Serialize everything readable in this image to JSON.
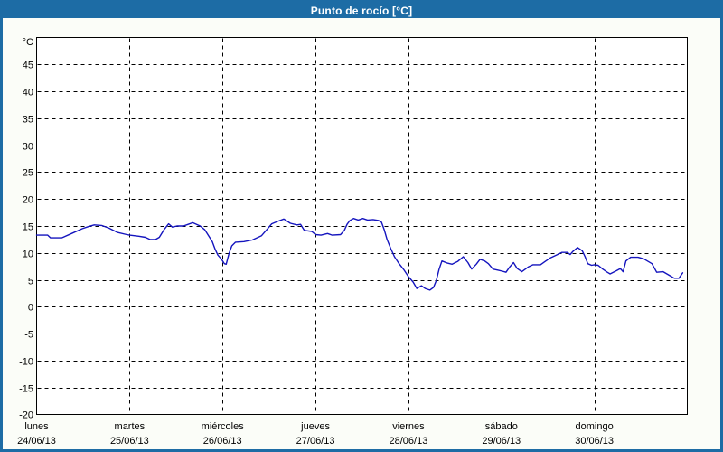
{
  "header": {
    "title": "Punto de rocío [°C]",
    "bg_color": "#1d6ca5",
    "text_color": "#ffffff"
  },
  "panel": {
    "background_color": "#fbfdf8",
    "border_color": "#1d6ca5",
    "plot_background_color": "#ffffff",
    "axis_color": "#000000"
  },
  "chart_data": {
    "type": "line",
    "title": "Punto de rocío [°C]",
    "y_unit_label": "°C",
    "ylabel": "",
    "xlabel": "",
    "ylim": [
      -20,
      50
    ],
    "xlim_days": [
      0,
      7
    ],
    "grid": "dashed",
    "legend": "none",
    "y_ticks": [
      45,
      40,
      35,
      30,
      25,
      20,
      15,
      10,
      5,
      0,
      -5,
      -10,
      -15
    ],
    "y_axis_bottom_label": "-20",
    "x_days": [
      {
        "name": "lunes",
        "date": "24/06/13"
      },
      {
        "name": "martes",
        "date": "25/06/13"
      },
      {
        "name": "miércoles",
        "date": "26/06/13"
      },
      {
        "name": "jueves",
        "date": "27/06/13"
      },
      {
        "name": "viernes",
        "date": "28/06/13"
      },
      {
        "name": "sábado",
        "date": "29/06/13"
      },
      {
        "name": "domingo",
        "date": "30/06/13"
      }
    ],
    "line_color": "#1414be",
    "series": [
      {
        "name": "Punto de rocío",
        "points": [
          [
            0.0,
            13.3
          ],
          [
            0.12,
            13.3
          ],
          [
            0.15,
            12.8
          ],
          [
            0.27,
            12.8
          ],
          [
            0.39,
            13.7
          ],
          [
            0.49,
            14.5
          ],
          [
            0.56,
            14.9
          ],
          [
            0.62,
            15.2
          ],
          [
            0.7,
            15.1
          ],
          [
            0.78,
            14.6
          ],
          [
            0.87,
            13.8
          ],
          [
            0.97,
            13.4
          ],
          [
            1.0,
            13.3
          ],
          [
            1.1,
            13.1
          ],
          [
            1.17,
            12.9
          ],
          [
            1.22,
            12.5
          ],
          [
            1.28,
            12.5
          ],
          [
            1.32,
            12.9
          ],
          [
            1.37,
            14.3
          ],
          [
            1.42,
            15.4
          ],
          [
            1.46,
            14.8
          ],
          [
            1.51,
            15.0
          ],
          [
            1.58,
            15.0
          ],
          [
            1.63,
            15.3
          ],
          [
            1.68,
            15.6
          ],
          [
            1.76,
            15.0
          ],
          [
            1.81,
            14.3
          ],
          [
            1.85,
            13.2
          ],
          [
            1.89,
            12.1
          ],
          [
            1.92,
            10.7
          ],
          [
            1.95,
            9.6
          ],
          [
            1.99,
            8.8
          ],
          [
            2.02,
            8.0
          ],
          [
            2.04,
            7.9
          ],
          [
            2.07,
            9.9
          ],
          [
            2.1,
            11.3
          ],
          [
            2.14,
            12.0
          ],
          [
            2.23,
            12.1
          ],
          [
            2.32,
            12.4
          ],
          [
            2.42,
            13.2
          ],
          [
            2.49,
            14.6
          ],
          [
            2.53,
            15.4
          ],
          [
            2.6,
            15.9
          ],
          [
            2.66,
            16.3
          ],
          [
            2.73,
            15.5
          ],
          [
            2.8,
            15.2
          ],
          [
            2.84,
            15.3
          ],
          [
            2.88,
            14.2
          ],
          [
            2.96,
            14.0
          ],
          [
            3.0,
            13.4
          ],
          [
            3.06,
            13.3
          ],
          [
            3.13,
            13.6
          ],
          [
            3.18,
            13.3
          ],
          [
            3.27,
            13.4
          ],
          [
            3.31,
            14.2
          ],
          [
            3.34,
            15.3
          ],
          [
            3.37,
            16.0
          ],
          [
            3.41,
            16.4
          ],
          [
            3.46,
            16.1
          ],
          [
            3.51,
            16.4
          ],
          [
            3.56,
            16.1
          ],
          [
            3.62,
            16.2
          ],
          [
            3.68,
            16.0
          ],
          [
            3.71,
            15.7
          ],
          [
            3.74,
            14.3
          ],
          [
            3.77,
            12.5
          ],
          [
            3.81,
            10.8
          ],
          [
            3.85,
            9.3
          ],
          [
            3.9,
            8.0
          ],
          [
            3.95,
            6.9
          ],
          [
            4.0,
            5.6
          ],
          [
            4.05,
            4.6
          ],
          [
            4.09,
            3.4
          ],
          [
            4.14,
            3.9
          ],
          [
            4.18,
            3.4
          ],
          [
            4.23,
            3.1
          ],
          [
            4.27,
            3.6
          ],
          [
            4.3,
            4.9
          ],
          [
            4.33,
            7.0
          ],
          [
            4.36,
            8.5
          ],
          [
            4.42,
            8.1
          ],
          [
            4.47,
            7.9
          ],
          [
            4.53,
            8.4
          ],
          [
            4.59,
            9.3
          ],
          [
            4.64,
            8.2
          ],
          [
            4.68,
            7.0
          ],
          [
            4.73,
            7.9
          ],
          [
            4.77,
            8.8
          ],
          [
            4.82,
            8.5
          ],
          [
            4.86,
            8.0
          ],
          [
            4.91,
            7.0
          ],
          [
            4.96,
            6.8
          ],
          [
            5.01,
            6.6
          ],
          [
            5.05,
            6.4
          ],
          [
            5.09,
            7.4
          ],
          [
            5.13,
            8.2
          ],
          [
            5.17,
            7.1
          ],
          [
            5.22,
            6.5
          ],
          [
            5.29,
            7.4
          ],
          [
            5.34,
            7.8
          ],
          [
            5.42,
            7.8
          ],
          [
            5.47,
            8.4
          ],
          [
            5.53,
            9.1
          ],
          [
            5.59,
            9.6
          ],
          [
            5.65,
            10.1
          ],
          [
            5.71,
            10.1
          ],
          [
            5.74,
            9.7
          ],
          [
            5.77,
            10.3
          ],
          [
            5.82,
            11.0
          ],
          [
            5.87,
            10.4
          ],
          [
            5.9,
            9.3
          ],
          [
            5.93,
            8.0
          ],
          [
            5.97,
            7.7
          ],
          [
            6.0,
            7.8
          ],
          [
            6.04,
            7.7
          ],
          [
            6.09,
            7.0
          ],
          [
            6.14,
            6.4
          ],
          [
            6.17,
            6.1
          ],
          [
            6.24,
            6.7
          ],
          [
            6.28,
            7.1
          ],
          [
            6.31,
            6.5
          ],
          [
            6.34,
            8.5
          ],
          [
            6.39,
            9.2
          ],
          [
            6.47,
            9.2
          ],
          [
            6.53,
            8.9
          ],
          [
            6.62,
            8.0
          ],
          [
            6.67,
            6.4
          ],
          [
            6.74,
            6.5
          ],
          [
            6.82,
            5.7
          ],
          [
            6.86,
            5.3
          ],
          [
            6.91,
            5.3
          ],
          [
            6.95,
            6.3
          ]
        ]
      }
    ]
  }
}
